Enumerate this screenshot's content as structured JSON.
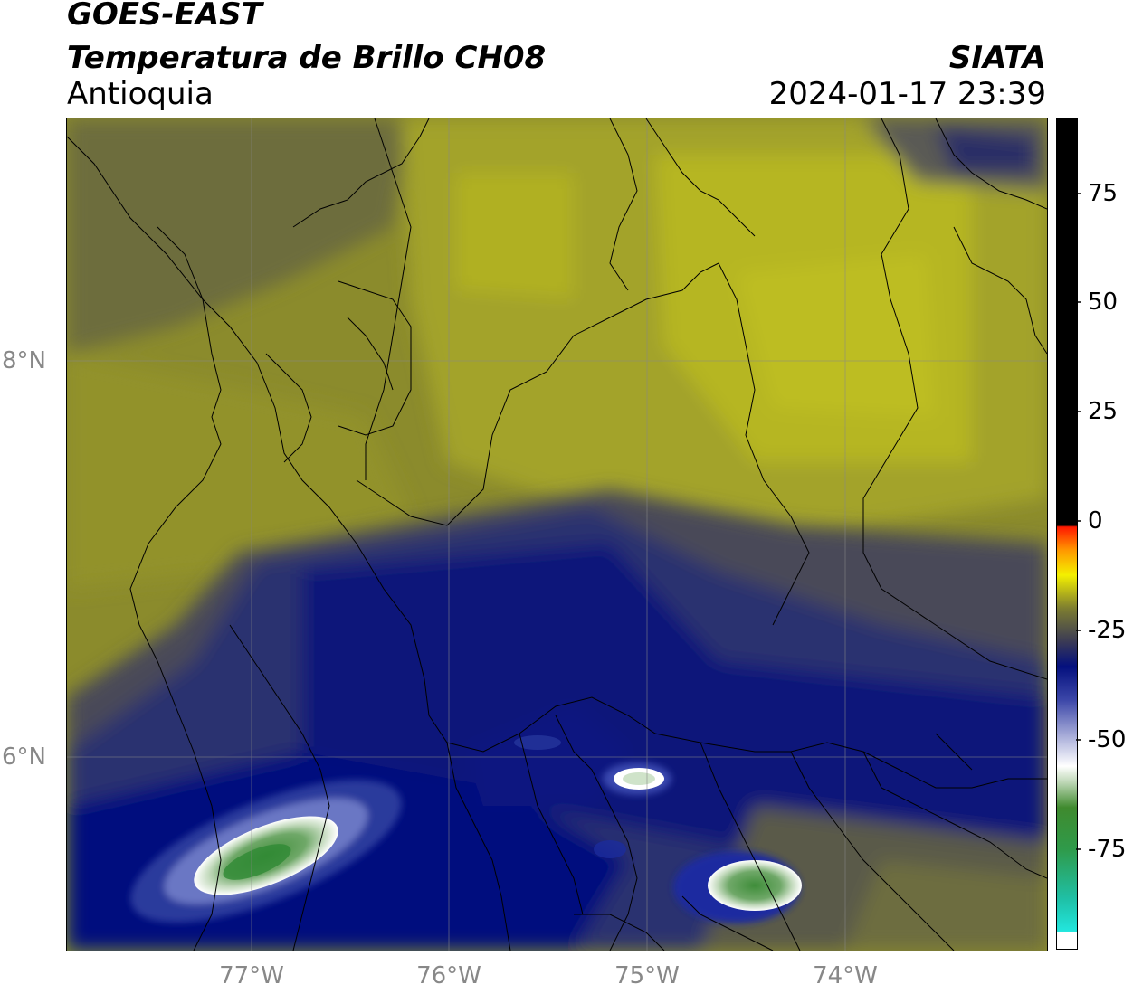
{
  "header": {
    "satellite": "GOES-EAST",
    "product": "Temperatura de Brillo CH08",
    "region": "Antioquia",
    "agency": "SIATA",
    "datetime": "2024-01-17 23:39"
  },
  "map": {
    "lat_labels": [
      "8°N",
      "6°N"
    ],
    "lon_labels": [
      "77°W",
      "76°W",
      "75°W",
      "74°W"
    ]
  },
  "colorbar": {
    "tick_labels": [
      "75",
      "50",
      "25",
      "0",
      "-25",
      "-50",
      "-75"
    ],
    "range": [
      -93,
      91
    ],
    "colors": {
      "cyan": "#22d8d0",
      "green": "#3a9a3a",
      "white": "#ffffff",
      "navy": "#05107a",
      "olive": "#77773a",
      "yellow": "#f4f000",
      "orange": "#ff9800",
      "red": "#ff1800",
      "black": "#000000"
    }
  }
}
